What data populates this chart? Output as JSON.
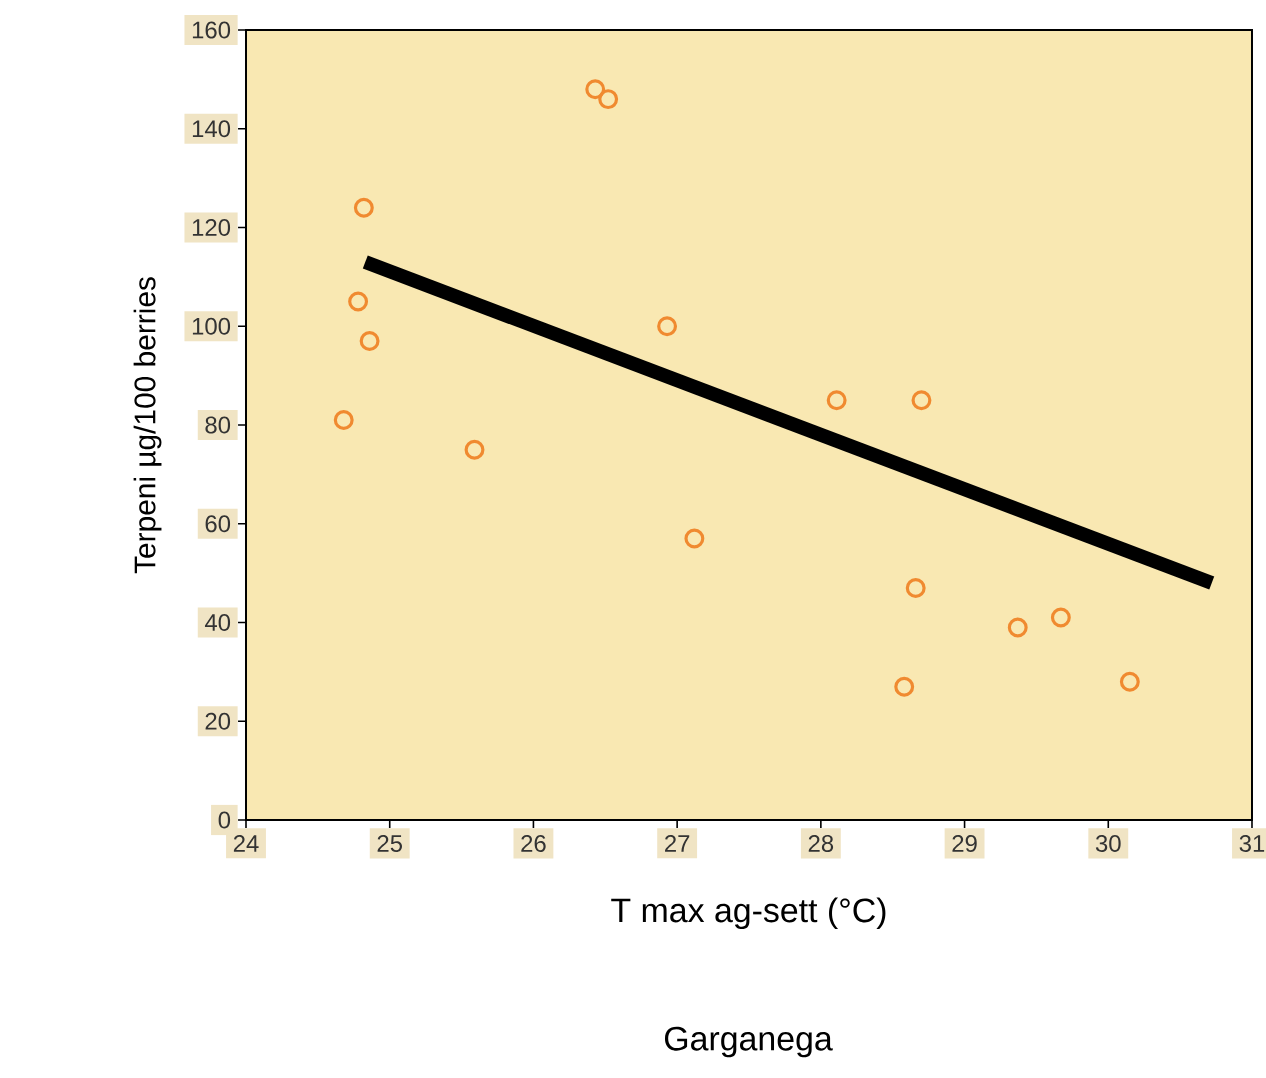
{
  "chart_data": {
    "type": "scatter",
    "title": "Garganega",
    "xlabel": "T max ag-sett (°C)",
    "ylabel": "Terpeni µg/100 berries",
    "xlim": [
      24,
      31
    ],
    "xticks": [
      24,
      25,
      26,
      27,
      28,
      29,
      30,
      31
    ],
    "ylim": [
      0,
      160
    ],
    "yticks": [
      0,
      20,
      40,
      60,
      80,
      100,
      120,
      140,
      160
    ],
    "grid": false,
    "series": [
      {
        "marker": "circle",
        "color": "#f08a30",
        "x": [
          26.43,
          26.52,
          24.82,
          24.78,
          24.86,
          24.68,
          25.59,
          26.93,
          28.11,
          28.7,
          27.12,
          28.66,
          28.58,
          29.37,
          29.67,
          30.15
        ],
        "values": [
          148,
          146,
          124,
          105,
          97,
          81,
          75,
          100,
          85,
          85,
          57,
          47,
          27,
          39,
          41,
          28
        ]
      },
      {
        "type": "line",
        "marker": "none",
        "color": "#000000",
        "x": [
          24.83,
          30.72
        ],
        "values": [
          113,
          48
        ]
      }
    ]
  }
}
